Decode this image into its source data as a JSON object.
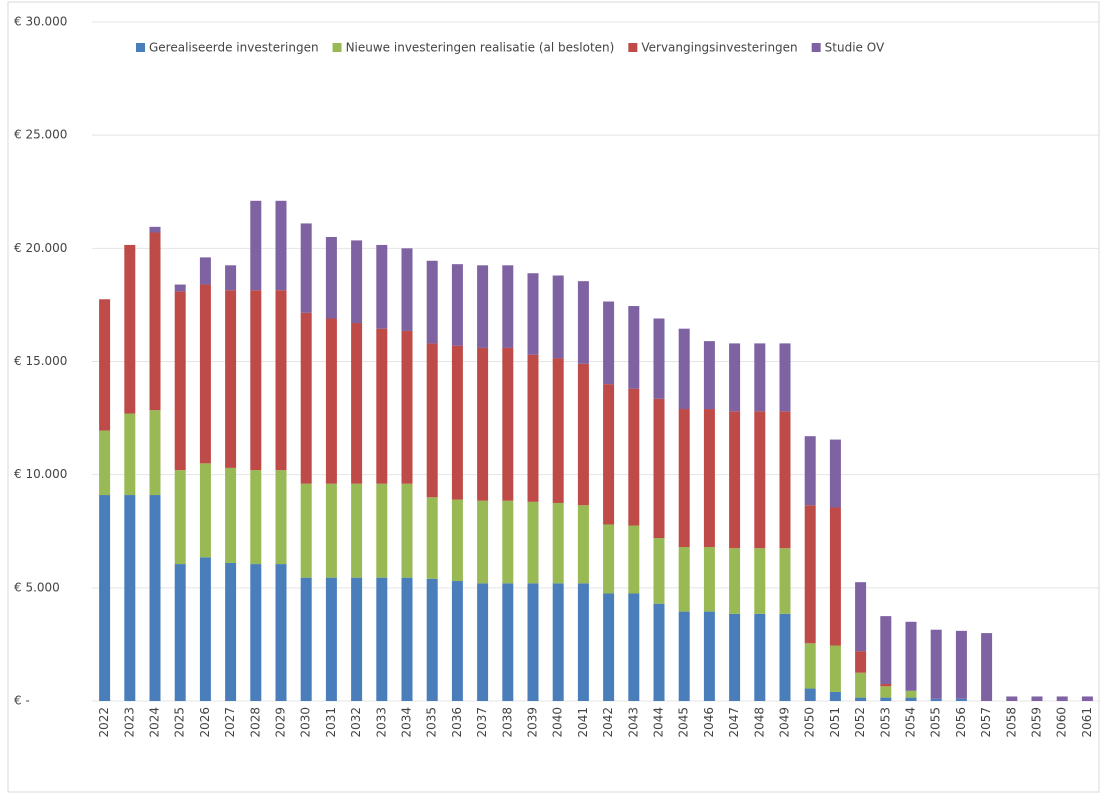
{
  "chart_data": {
    "type": "stacked_bar",
    "categories": [
      "2022",
      "2023",
      "2024",
      "2025",
      "2026",
      "2027",
      "2028",
      "2029",
      "2030",
      "2031",
      "2032",
      "2033",
      "2034",
      "2035",
      "2036",
      "2037",
      "2038",
      "2039",
      "2040",
      "2041",
      "2042",
      "2043",
      "2044",
      "2045",
      "2046",
      "2047",
      "2048",
      "2049",
      "2050",
      "2051",
      "2052",
      "2053",
      "2054",
      "2055",
      "2056",
      "2057",
      "2058",
      "2059",
      "2060",
      "2061"
    ],
    "series": [
      {
        "name": "Gerealiseerde investeringen",
        "color": "#4a7ebb",
        "values": [
          9100,
          9100,
          9100,
          6050,
          6350,
          6100,
          6050,
          6050,
          5450,
          5450,
          5450,
          5450,
          5450,
          5400,
          5300,
          5200,
          5200,
          5200,
          5200,
          5200,
          4750,
          4750,
          4300,
          3950,
          3950,
          3850,
          3850,
          3850,
          550,
          400,
          150,
          150,
          150,
          100,
          100,
          0,
          0,
          0,
          0,
          0
        ]
      },
      {
        "name": "Nieuwe investeringen realisatie (al besloten)",
        "color": "#98b954",
        "values": [
          2850,
          3600,
          3750,
          4150,
          4150,
          4200,
          4150,
          4150,
          4150,
          4150,
          4150,
          4150,
          4150,
          3600,
          3600,
          3650,
          3650,
          3600,
          3550,
          3450,
          3050,
          3000,
          2900,
          2850,
          2850,
          2900,
          2900,
          2900,
          2000,
          2050,
          1100,
          500,
          300,
          0,
          0,
          0,
          0,
          0,
          0,
          0
        ]
      },
      {
        "name": "Vervangingsinvesteringen",
        "color": "#be4b48",
        "values": [
          5800,
          7450,
          7850,
          7900,
          7900,
          7850,
          7950,
          7950,
          7550,
          7300,
          7100,
          6850,
          6750,
          6800,
          6800,
          6750,
          6750,
          6500,
          6400,
          6250,
          6200,
          6050,
          6150,
          6100,
          6100,
          6050,
          6050,
          6050,
          6100,
          6100,
          950,
          100,
          0,
          0,
          0,
          0,
          0,
          0,
          0,
          0
        ]
      },
      {
        "name": "Studie OV",
        "color": "#7e62a1",
        "values": [
          0,
          0,
          250,
          300,
          1200,
          1100,
          3950,
          3950,
          3950,
          3600,
          3650,
          3700,
          3650,
          3650,
          3600,
          3650,
          3650,
          3600,
          3650,
          3650,
          3650,
          3650,
          3550,
          3550,
          3000,
          3000,
          3000,
          3000,
          3050,
          3000,
          3050,
          3000,
          3050,
          3050,
          3000,
          3000,
          200,
          200,
          200,
          200
        ]
      }
    ],
    "ylim": [
      0,
      30000
    ],
    "yticks": [
      {
        "value": 0,
        "label": "€ -"
      },
      {
        "value": 5000,
        "label": "€ 5.000"
      },
      {
        "value": 10000,
        "label": "€ 10.000"
      },
      {
        "value": 15000,
        "label": "€ 15.000"
      },
      {
        "value": 20000,
        "label": "€ 20.000"
      },
      {
        "value": 25000,
        "label": "€ 25.000"
      },
      {
        "value": 30000,
        "label": "€ 30.000"
      }
    ],
    "grid": true,
    "legend": "top"
  }
}
